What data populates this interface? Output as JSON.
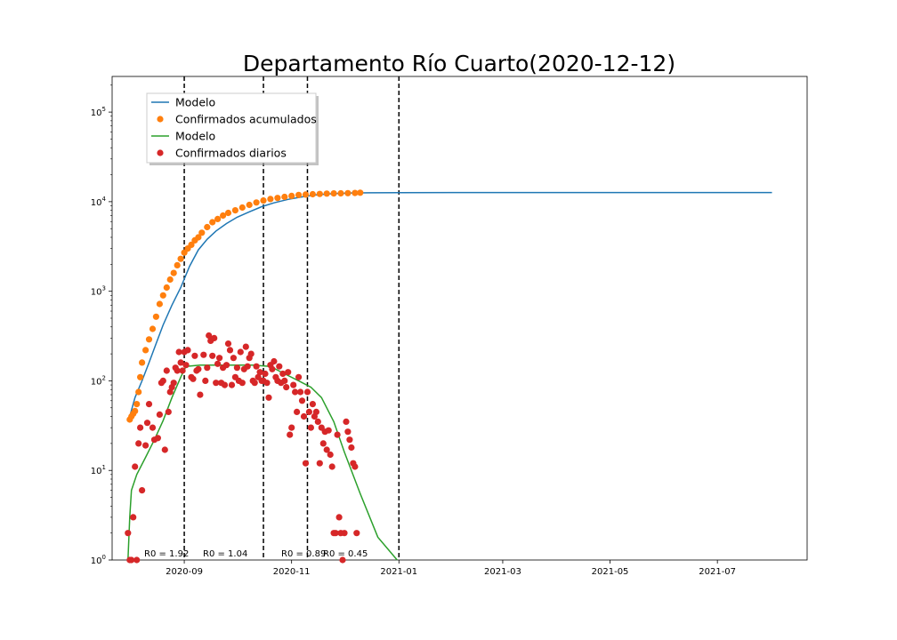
{
  "colors": {
    "modelo_acumulado": "#1f77b4",
    "confirmados_acumulados": "#ff7f0e",
    "modelo_diario": "#2ca02c",
    "confirmados_diarios": "#d62728"
  },
  "chart_data": {
    "type": "line",
    "title": "Departamento Río Cuarto(2020-12-12)",
    "xlabel": "",
    "ylabel": "",
    "y_scale": "log",
    "ylim": [
      1,
      250000
    ],
    "xlim": [
      "2020-07-22",
      "2021-08-21"
    ],
    "grid": false,
    "legend_position": "top-left",
    "x_ticks": [
      "2020-09",
      "2020-11",
      "2021-01",
      "2021-03",
      "2021-05",
      "2021-07"
    ],
    "y_ticks": [
      {
        "value": 1,
        "base": "10",
        "exp": "0"
      },
      {
        "value": 10,
        "base": "10",
        "exp": "1"
      },
      {
        "value": 100,
        "base": "10",
        "exp": "2"
      },
      {
        "value": 1000,
        "base": "10",
        "exp": "3"
      },
      {
        "value": 10000,
        "base": "10",
        "exp": "4"
      },
      {
        "value": 100000,
        "base": "10",
        "exp": "5"
      }
    ],
    "vlines": [
      {
        "x": "2020-09-01",
        "label": "R0 = 1.92"
      },
      {
        "x": "2020-10-16",
        "label": "R0 = 1.04"
      },
      {
        "x": "2020-11-10",
        "label": "R0 = 0.89"
      },
      {
        "x": "2021-01-01",
        "label": "R0 = 0.45"
      }
    ],
    "series": [
      {
        "name": "Modelo",
        "kind": "line",
        "color": "#1f77b4",
        "x": [
          "2020-08-01",
          "2020-08-04",
          "2020-08-08",
          "2020-08-12",
          "2020-08-16",
          "2020-08-20",
          "2020-08-25",
          "2020-08-30",
          "2020-09-04",
          "2020-09-09",
          "2020-09-14",
          "2020-09-19",
          "2020-09-25",
          "2020-10-01",
          "2020-10-08",
          "2020-10-15",
          "2020-10-22",
          "2020-10-30",
          "2020-11-07",
          "2020-11-15",
          "2020-11-25",
          "2020-12-05",
          "2020-12-15",
          "2021-01-01",
          "2021-02-01",
          "2021-04-01",
          "2021-06-01",
          "2021-08-01"
        ],
        "y": [
          40,
          65,
          100,
          160,
          260,
          420,
          700,
          1100,
          1900,
          2900,
          3800,
          4700,
          5700,
          6700,
          7700,
          8800,
          9700,
          10600,
          11300,
          11900,
          12300,
          12500,
          12550,
          12600,
          12650,
          12650,
          12650,
          12650
        ]
      },
      {
        "name": "Confirmados acumulados",
        "kind": "scatter",
        "color": "#ff7f0e",
        "x": [
          "2020-08-01",
          "2020-08-02",
          "2020-08-03",
          "2020-08-04",
          "2020-08-05",
          "2020-08-06",
          "2020-08-07",
          "2020-08-08",
          "2020-08-10",
          "2020-08-12",
          "2020-08-14",
          "2020-08-16",
          "2020-08-18",
          "2020-08-20",
          "2020-08-22",
          "2020-08-24",
          "2020-08-26",
          "2020-08-28",
          "2020-08-30",
          "2020-09-01",
          "2020-09-03",
          "2020-09-05",
          "2020-09-07",
          "2020-09-09",
          "2020-09-11",
          "2020-09-14",
          "2020-09-17",
          "2020-09-20",
          "2020-09-23",
          "2020-09-26",
          "2020-09-30",
          "2020-10-04",
          "2020-10-08",
          "2020-10-12",
          "2020-10-16",
          "2020-10-20",
          "2020-10-24",
          "2020-10-28",
          "2020-11-01",
          "2020-11-05",
          "2020-11-09",
          "2020-11-13",
          "2020-11-17",
          "2020-11-21",
          "2020-11-25",
          "2020-11-29",
          "2020-12-03",
          "2020-12-07",
          "2020-12-10"
        ],
        "y": [
          37,
          40,
          43,
          46,
          55,
          75,
          110,
          160,
          220,
          290,
          380,
          520,
          720,
          900,
          1100,
          1350,
          1600,
          1950,
          2300,
          2700,
          3000,
          3300,
          3700,
          4000,
          4500,
          5200,
          5900,
          6400,
          7000,
          7500,
          8000,
          8600,
          9200,
          9800,
          10300,
          10700,
          11000,
          11300,
          11600,
          11900,
          12000,
          12100,
          12200,
          12300,
          12350,
          12400,
          12450,
          12500,
          12600
        ]
      },
      {
        "name": "Modelo",
        "kind": "line",
        "color": "#2ca02c",
        "x": [
          "2020-07-31",
          "2020-08-01",
          "2020-08-02",
          "2020-08-05",
          "2020-08-10",
          "2020-08-15",
          "2020-08-20",
          "2020-08-25",
          "2020-08-30",
          "2020-09-02",
          "2020-09-10",
          "2020-09-20",
          "2020-10-01",
          "2020-10-10",
          "2020-10-20",
          "2020-10-28",
          "2020-11-05",
          "2020-11-12",
          "2020-11-18",
          "2020-11-25",
          "2020-12-01",
          "2020-12-10",
          "2020-12-20",
          "2020-12-31"
        ],
        "y": [
          1,
          3,
          6,
          9,
          14,
          22,
          36,
          65,
          110,
          145,
          150,
          150,
          150,
          150,
          145,
          120,
          100,
          85,
          65,
          35,
          16,
          5.5,
          1.8,
          1
        ]
      },
      {
        "name": "Confirmados diarios",
        "kind": "scatter",
        "color": "#d62728",
        "x": [
          "2020-07-31",
          "2020-08-01",
          "2020-08-02",
          "2020-08-03",
          "2020-08-04",
          "2020-08-05",
          "2020-08-06",
          "2020-08-07",
          "2020-08-08",
          "2020-08-10",
          "2020-08-11",
          "2020-08-12",
          "2020-08-14",
          "2020-08-15",
          "2020-08-17",
          "2020-08-18",
          "2020-08-19",
          "2020-08-20",
          "2020-08-21",
          "2020-08-22",
          "2020-08-23",
          "2020-08-24",
          "2020-08-25",
          "2020-08-26",
          "2020-08-27",
          "2020-08-28",
          "2020-08-29",
          "2020-08-30",
          "2020-08-31",
          "2020-09-01",
          "2020-09-02",
          "2020-09-03",
          "2020-09-05",
          "2020-09-06",
          "2020-09-07",
          "2020-09-08",
          "2020-09-09",
          "2020-09-10",
          "2020-09-12",
          "2020-09-13",
          "2020-09-14",
          "2020-09-15",
          "2020-09-16",
          "2020-09-17",
          "2020-09-18",
          "2020-09-19",
          "2020-09-20",
          "2020-09-21",
          "2020-09-22",
          "2020-09-23",
          "2020-09-24",
          "2020-09-25",
          "2020-09-26",
          "2020-09-27",
          "2020-09-28",
          "2020-09-29",
          "2020-09-30",
          "2020-10-01",
          "2020-10-02",
          "2020-10-03",
          "2020-10-04",
          "2020-10-05",
          "2020-10-06",
          "2020-10-07",
          "2020-10-08",
          "2020-10-09",
          "2020-10-10",
          "2020-10-11",
          "2020-10-12",
          "2020-10-13",
          "2020-10-14",
          "2020-10-15",
          "2020-10-16",
          "2020-10-17",
          "2020-10-18",
          "2020-10-19",
          "2020-10-20",
          "2020-10-21",
          "2020-10-22",
          "2020-10-23",
          "2020-10-24",
          "2020-10-25",
          "2020-10-26",
          "2020-10-27",
          "2020-10-28",
          "2020-10-29",
          "2020-10-30",
          "2020-10-31",
          "2020-11-01",
          "2020-11-02",
          "2020-11-03",
          "2020-11-04",
          "2020-11-05",
          "2020-11-06",
          "2020-11-07",
          "2020-11-08",
          "2020-11-09",
          "2020-11-10",
          "2020-11-11",
          "2020-11-12",
          "2020-11-13",
          "2020-11-14",
          "2020-11-15",
          "2020-11-16",
          "2020-11-17",
          "2020-11-18",
          "2020-11-19",
          "2020-11-20",
          "2020-11-21",
          "2020-11-22",
          "2020-11-23",
          "2020-11-24",
          "2020-11-25",
          "2020-11-26",
          "2020-11-27",
          "2020-11-28",
          "2020-11-29",
          "2020-11-30",
          "2020-12-01",
          "2020-12-02",
          "2020-12-03",
          "2020-12-04",
          "2020-12-05",
          "2020-12-06",
          "2020-12-07",
          "2020-12-08"
        ],
        "y": [
          2,
          1,
          1,
          3,
          11,
          1,
          20,
          30,
          6,
          19,
          34,
          55,
          30,
          22,
          23,
          42,
          95,
          100,
          17,
          130,
          45,
          75,
          85,
          95,
          140,
          130,
          210,
          160,
          130,
          210,
          150,
          220,
          110,
          105,
          190,
          130,
          135,
          70,
          195,
          100,
          140,
          320,
          280,
          190,
          300,
          95,
          155,
          180,
          95,
          140,
          90,
          150,
          260,
          220,
          90,
          180,
          110,
          140,
          100,
          210,
          95,
          135,
          240,
          145,
          180,
          200,
          100,
          95,
          145,
          110,
          125,
          100,
          100,
          120,
          95,
          65,
          150,
          135,
          165,
          110,
          100,
          145,
          95,
          120,
          100,
          85,
          125,
          25,
          30,
          90,
          75,
          45,
          110,
          75,
          60,
          40,
          12,
          75,
          45,
          30,
          55,
          40,
          45,
          35,
          12,
          30,
          20,
          27,
          17,
          28,
          15,
          11,
          2,
          2,
          25,
          3,
          2,
          1,
          2,
          35,
          27,
          22,
          18,
          12,
          11,
          2
        ]
      }
    ]
  }
}
